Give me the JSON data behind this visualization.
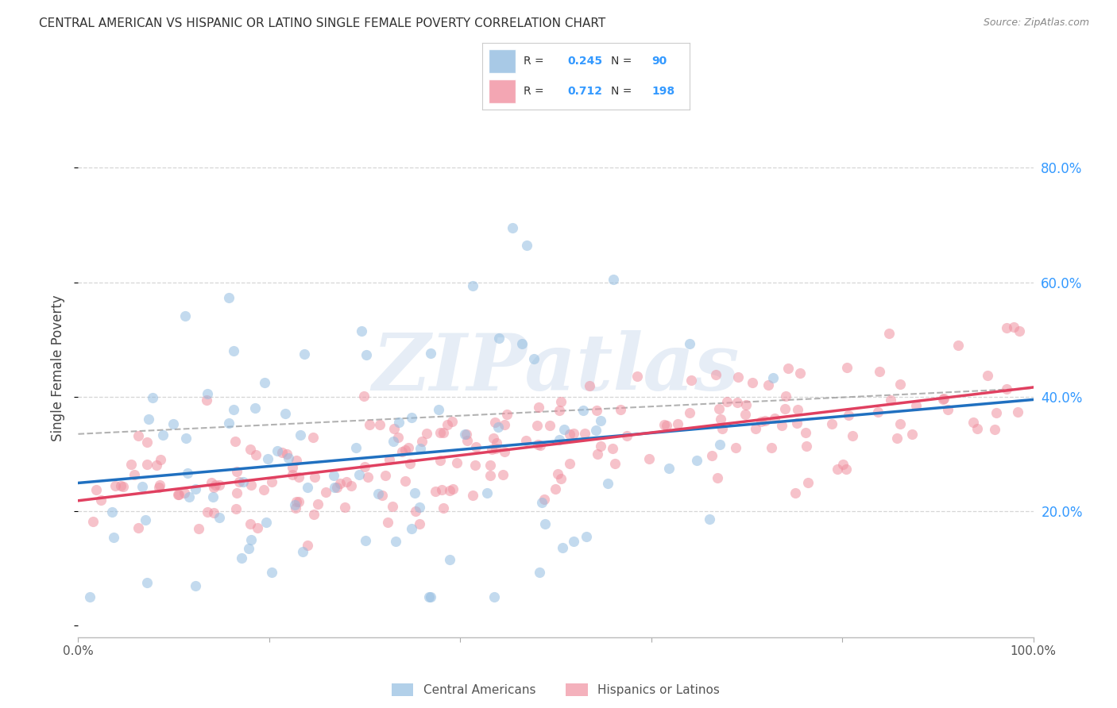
{
  "title": "CENTRAL AMERICAN VS HISPANIC OR LATINO SINGLE FEMALE POVERTY CORRELATION CHART",
  "source": "Source: ZipAtlas.com",
  "ylabel": "Single Female Poverty",
  "watermark_text": "ZIPatlas",
  "blue_color": "#92bce0",
  "pink_color": "#f090a0",
  "blue_line_color": "#2070c0",
  "pink_line_color": "#e04060",
  "blue_R": 0.245,
  "blue_N": 90,
  "pink_R": 0.712,
  "pink_N": 198,
  "right_yticks": [
    0.2,
    0.4,
    0.6,
    0.8
  ],
  "right_ytick_labels": [
    "20.0%",
    "40.0%",
    "60.0%",
    "80.0%"
  ],
  "xlim": [
    0.0,
    1.0
  ],
  "ylim": [
    -0.02,
    0.92
  ],
  "background_color": "#ffffff",
  "grid_color": "#cccccc",
  "legend_blue_R": "0.245",
  "legend_pink_R": "0.712",
  "legend_blue_N": "90",
  "legend_pink_N": "198",
  "bottom_legend_items": [
    "Central Americans",
    "Hispanics or Latinos"
  ],
  "title_color": "#333333",
  "source_color": "#888888",
  "axis_label_color": "#444444",
  "right_tick_color": "#3399ff"
}
